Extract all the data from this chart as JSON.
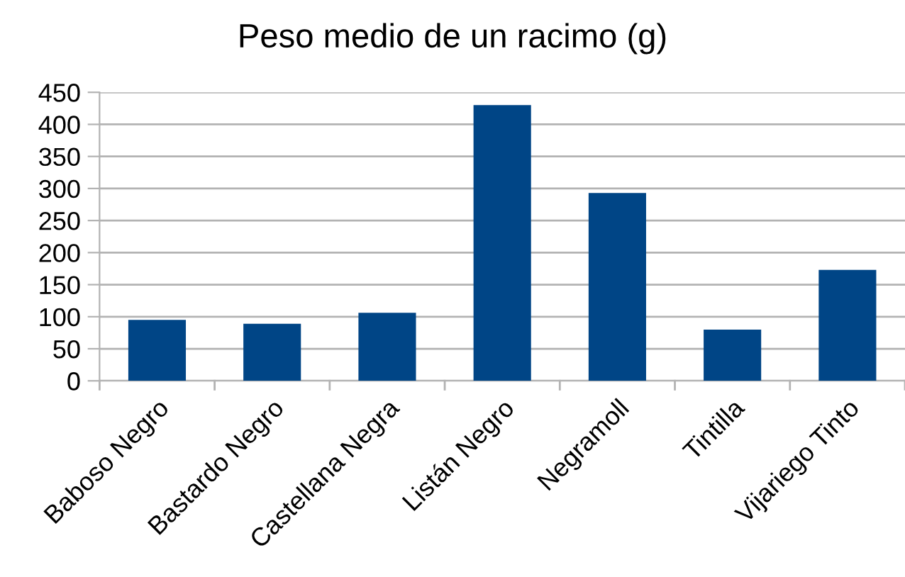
{
  "chart_data": {
    "type": "bar",
    "title": "Peso medio de un racimo (g)",
    "categories": [
      "Baboso Negro",
      "Bastardo Negro",
      "Castellana Negra",
      "Listán Negro",
      "Negramoll",
      "Tintilla",
      "Vijariego Tinto"
    ],
    "values": [
      95,
      89,
      106,
      430,
      293,
      80,
      173
    ],
    "color": "#004586",
    "ylim": [
      0,
      450
    ],
    "yticks": [
      0,
      50,
      100,
      150,
      200,
      250,
      300,
      350,
      400,
      450
    ],
    "grid": "y"
  }
}
